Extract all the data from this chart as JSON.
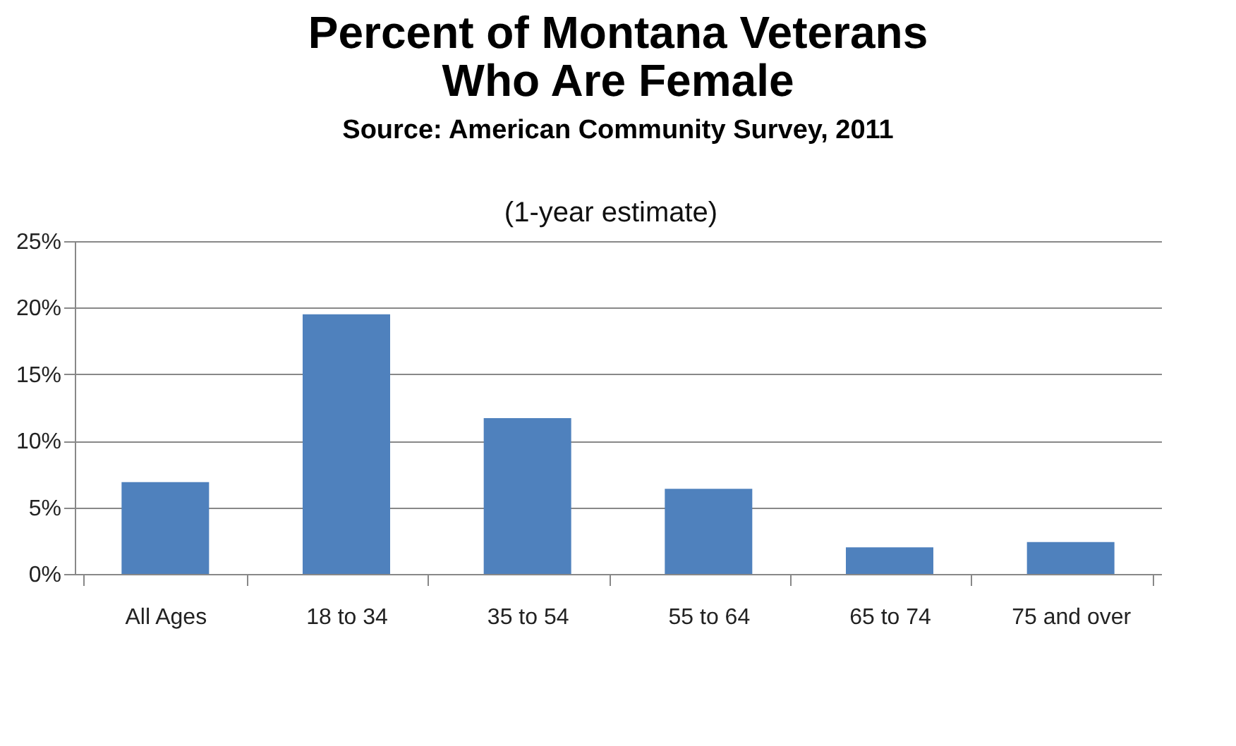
{
  "chart_data": {
    "type": "bar",
    "title": "Percent of Montana Veterans Who Are Female",
    "subtitle": "Source: American Community Survey, 2011",
    "annotations": [
      "(1-year estimate)"
    ],
    "categories": [
      "All Ages",
      "18 to 34",
      "35 to 54",
      "55 to 64",
      "65 to 74",
      "75 and over"
    ],
    "values": [
      6.9,
      19.5,
      11.7,
      6.4,
      2.0,
      2.4
    ],
    "color": "#4f81bd",
    "ylim": [
      0,
      25
    ],
    "yticks": [
      {
        "value": 0,
        "label": "0%"
      },
      {
        "value": 5,
        "label": "5%"
      },
      {
        "value": 10,
        "label": "10%"
      },
      {
        "value": 15,
        "label": "15%"
      },
      {
        "value": 20,
        "label": "20%"
      },
      {
        "value": 25,
        "label": "25%"
      }
    ],
    "grid": "y"
  }
}
